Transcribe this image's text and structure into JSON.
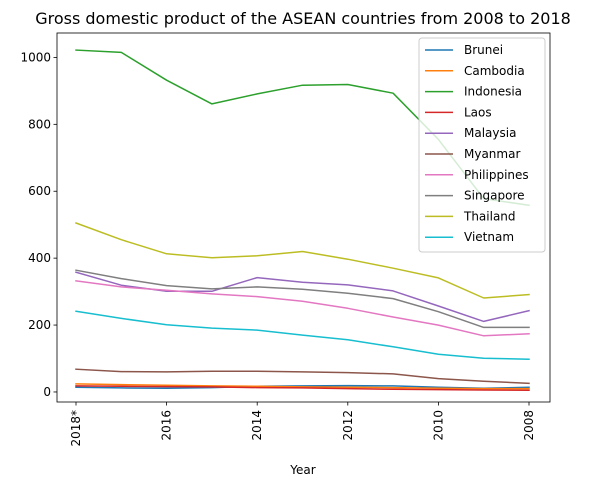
{
  "chart_data": {
    "type": "line",
    "title": "Gross domestic product of the ASEAN countries from 2008 to 2018",
    "xlabel": "Year",
    "ylabel": "",
    "x": [
      "2018*",
      "2017",
      "2016",
      "2015",
      "2014",
      "2013",
      "2012",
      "2011",
      "2010",
      "2009",
      "2008"
    ],
    "xticks": [
      "2018*",
      "2016",
      "2014",
      "2012",
      "2010",
      "2008"
    ],
    "yticks": [
      "0",
      "200",
      "400",
      "600",
      "800",
      "1000"
    ],
    "ylim": [
      -30,
      1073
    ],
    "grid": false,
    "legend_position": "top-right",
    "series": [
      {
        "name": "Brunei",
        "color": "#1f77b4",
        "values": [
          14,
          12,
          11,
          13,
          17,
          18,
          19,
          18,
          14,
          11,
          14
        ]
      },
      {
        "name": "Cambodia",
        "color": "#ff7f0e",
        "values": [
          24,
          22,
          20,
          18,
          17,
          15,
          14,
          13,
          11,
          10,
          10
        ]
      },
      {
        "name": "Indonesia",
        "color": "#2ca02c",
        "values": [
          1022,
          1015,
          932,
          861,
          891,
          917,
          919,
          893,
          755,
          578,
          558
        ]
      },
      {
        "name": "Laos",
        "color": "#d62728",
        "values": [
          18,
          17,
          16,
          15,
          13,
          12,
          10,
          8,
          7,
          6,
          5
        ]
      },
      {
        "name": "Malaysia",
        "color": "#9467bd",
        "values": [
          358,
          319,
          301,
          301,
          342,
          328,
          320,
          302,
          257,
          211,
          243
        ]
      },
      {
        "name": "Myanmar",
        "color": "#8c564b",
        "values": [
          68,
          61,
          60,
          62,
          62,
          60,
          58,
          54,
          40,
          32,
          26
        ]
      },
      {
        "name": "Philippines",
        "color": "#e377c2",
        "values": [
          332,
          314,
          304,
          293,
          285,
          271,
          250,
          224,
          200,
          168,
          174
        ]
      },
      {
        "name": "Singapore",
        "color": "#7f7f7f",
        "values": [
          364,
          339,
          318,
          308,
          314,
          307,
          295,
          279,
          240,
          193,
          193
        ]
      },
      {
        "name": "Thailand",
        "color": "#bcbd22",
        "values": [
          505,
          455,
          413,
          401,
          407,
          420,
          397,
          370,
          341,
          281,
          291
        ]
      },
      {
        "name": "Vietnam",
        "color": "#17becf",
        "values": [
          241,
          220,
          201,
          191,
          185,
          170,
          156,
          135,
          113,
          101,
          98
        ]
      }
    ]
  }
}
